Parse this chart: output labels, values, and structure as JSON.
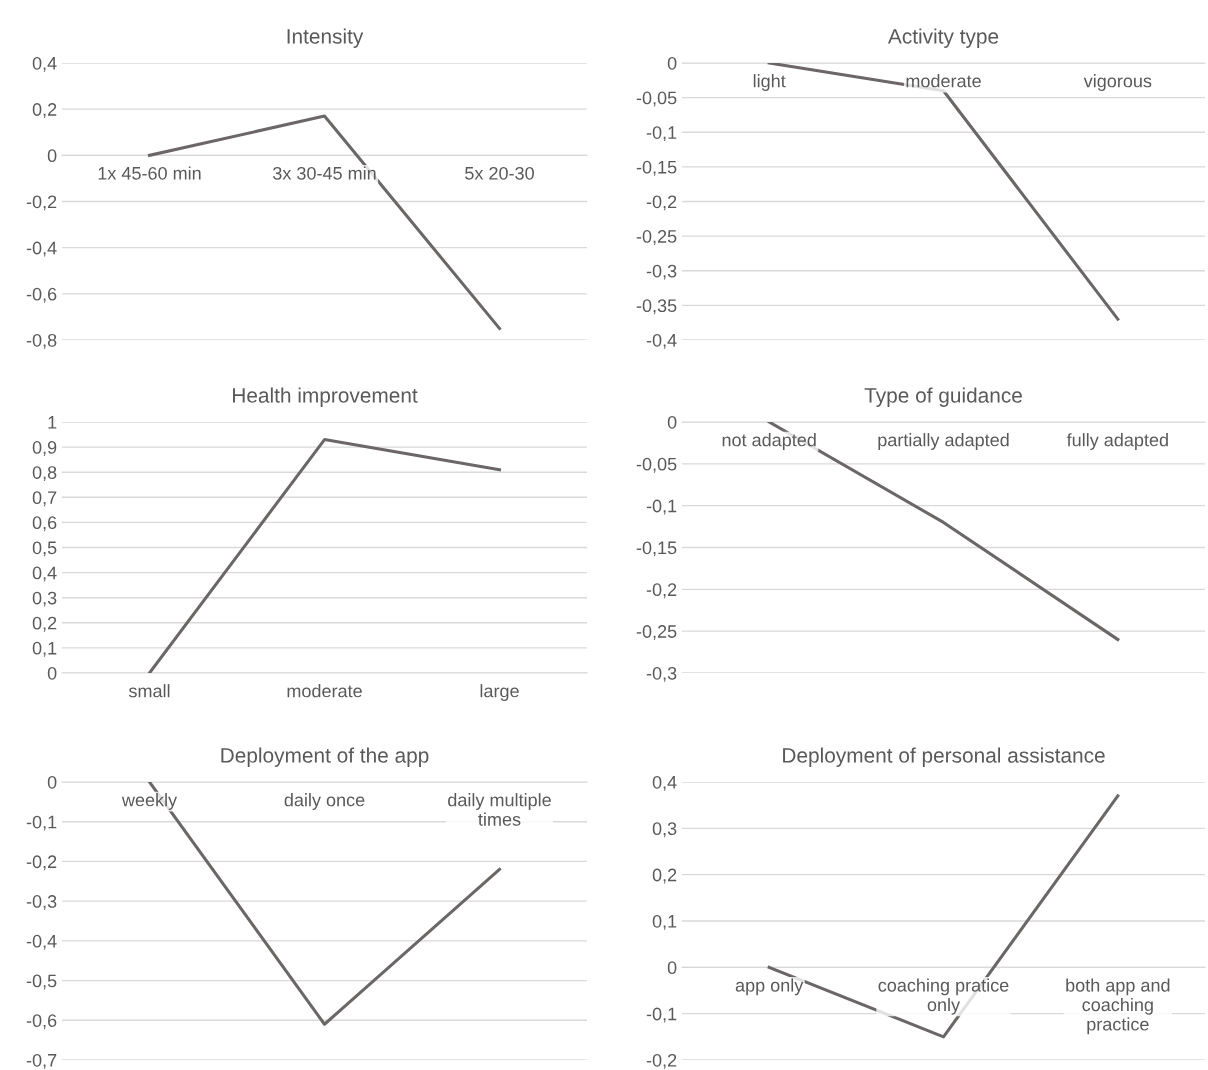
{
  "chart_data": [
    {
      "type": "line",
      "title": "Intensity",
      "categories": [
        "1x 45-60 min",
        "3x 30-45 min",
        "5x 20-30"
      ],
      "series": [
        {
          "color": "#6b6767",
          "values": [
            0,
            0.17,
            -0.75
          ]
        }
      ],
      "ylim": [
        -0.8,
        0.4
      ],
      "yticks": [
        {
          "value": -0.8,
          "label": "-0,8"
        },
        {
          "value": -0.6,
          "label": "-0,6"
        },
        {
          "value": -0.4,
          "label": "-0,4"
        },
        {
          "value": -0.2,
          "label": "-0,2"
        },
        0,
        {
          "value": 0.2,
          "label": "0,2"
        },
        {
          "value": 0.4,
          "label": "0,4"
        }
      ],
      "grid": "y",
      "marker": "none",
      "line_style": "solid"
    },
    {
      "type": "line",
      "title": "Activity type",
      "categories": [
        "light",
        "moderate",
        "vigorous"
      ],
      "series": [
        {
          "color": "#6b6767",
          "values": [
            0,
            -0.04,
            -0.37
          ]
        }
      ],
      "ylim": [
        -0.4,
        0
      ],
      "yticks": [
        {
          "value": -0.4,
          "label": "-0,4"
        },
        {
          "value": -0.35,
          "label": "-0,35"
        },
        {
          "value": -0.3,
          "label": "-0,3"
        },
        {
          "value": -0.25,
          "label": "-0,25"
        },
        {
          "value": -0.2,
          "label": "-0,2"
        },
        {
          "value": -0.15,
          "label": "-0,15"
        },
        {
          "value": -0.1,
          "label": "-0,1"
        },
        {
          "value": -0.05,
          "label": "-0,05"
        },
        0
      ],
      "grid": "y",
      "marker": "none",
      "line_style": "solid"
    },
    {
      "type": "line",
      "title": "Health improvement",
      "categories": [
        "small",
        "moderate",
        "large"
      ],
      "series": [
        {
          "color": "#6b6767",
          "values": [
            0,
            0.93,
            0.81
          ]
        }
      ],
      "ylim": [
        0,
        1
      ],
      "yticks": [
        0,
        {
          "value": 0.1,
          "label": "0,1"
        },
        {
          "value": 0.2,
          "label": "0,2"
        },
        {
          "value": 0.3,
          "label": "0,3"
        },
        {
          "value": 0.4,
          "label": "0,4"
        },
        {
          "value": 0.5,
          "label": "0,5"
        },
        {
          "value": 0.6,
          "label": "0,6"
        },
        {
          "value": 0.7,
          "label": "0,7"
        },
        {
          "value": 0.8,
          "label": "0,8"
        },
        {
          "value": 0.9,
          "label": "0,9"
        },
        1
      ],
      "grid": "y",
      "marker": "none",
      "line_style": "solid"
    },
    {
      "type": "line",
      "title": "Type of guidance",
      "categories": [
        "not adapted",
        "partially adapted",
        "fully adapted"
      ],
      "series": [
        {
          "color": "#6b6767",
          "values": [
            0,
            -0.12,
            -0.26
          ]
        }
      ],
      "ylim": [
        -0.3,
        0
      ],
      "yticks": [
        {
          "value": -0.3,
          "label": "-0,3"
        },
        {
          "value": -0.25,
          "label": "-0,25"
        },
        {
          "value": -0.2,
          "label": "-0,2"
        },
        {
          "value": -0.15,
          "label": "-0,15"
        },
        {
          "value": -0.1,
          "label": "-0,1"
        },
        {
          "value": -0.05,
          "label": "-0,05"
        },
        0
      ],
      "grid": "y",
      "marker": "none",
      "line_style": "solid"
    },
    {
      "type": "line",
      "title": "Deployment of the app",
      "categories": [
        "weekly",
        "daily once",
        "daily multiple\ntimes"
      ],
      "series": [
        {
          "color": "#6b6767",
          "values": [
            0,
            -0.61,
            -0.22
          ]
        }
      ],
      "ylim": [
        -0.7,
        0
      ],
      "yticks": [
        {
          "value": -0.7,
          "label": "-0,7"
        },
        {
          "value": -0.6,
          "label": "-0,6"
        },
        {
          "value": -0.5,
          "label": "-0,5"
        },
        {
          "value": -0.4,
          "label": "-0,4"
        },
        {
          "value": -0.3,
          "label": "-0,3"
        },
        {
          "value": -0.2,
          "label": "-0,2"
        },
        {
          "value": -0.1,
          "label": "-0,1"
        },
        0
      ],
      "grid": "y",
      "marker": "none",
      "line_style": "solid"
    },
    {
      "type": "line",
      "title": "Deployment of personal assistance",
      "categories": [
        "app only",
        "coaching pratice\nonly",
        "both app and\ncoaching\npractice"
      ],
      "series": [
        {
          "color": "#6b6767",
          "values": [
            0,
            -0.15,
            0.37
          ]
        }
      ],
      "ylim": [
        -0.2,
        0.4
      ],
      "yticks": [
        {
          "value": -0.2,
          "label": "-0,2"
        },
        {
          "value": -0.1,
          "label": "-0,1"
        },
        0,
        {
          "value": 0.1,
          "label": "0,1"
        },
        {
          "value": 0.2,
          "label": "0,2"
        },
        {
          "value": 0.3,
          "label": "0,3"
        },
        {
          "value": 0.4,
          "label": "0,4"
        }
      ],
      "grid": "y",
      "marker": "none",
      "line_style": "solid"
    }
  ]
}
